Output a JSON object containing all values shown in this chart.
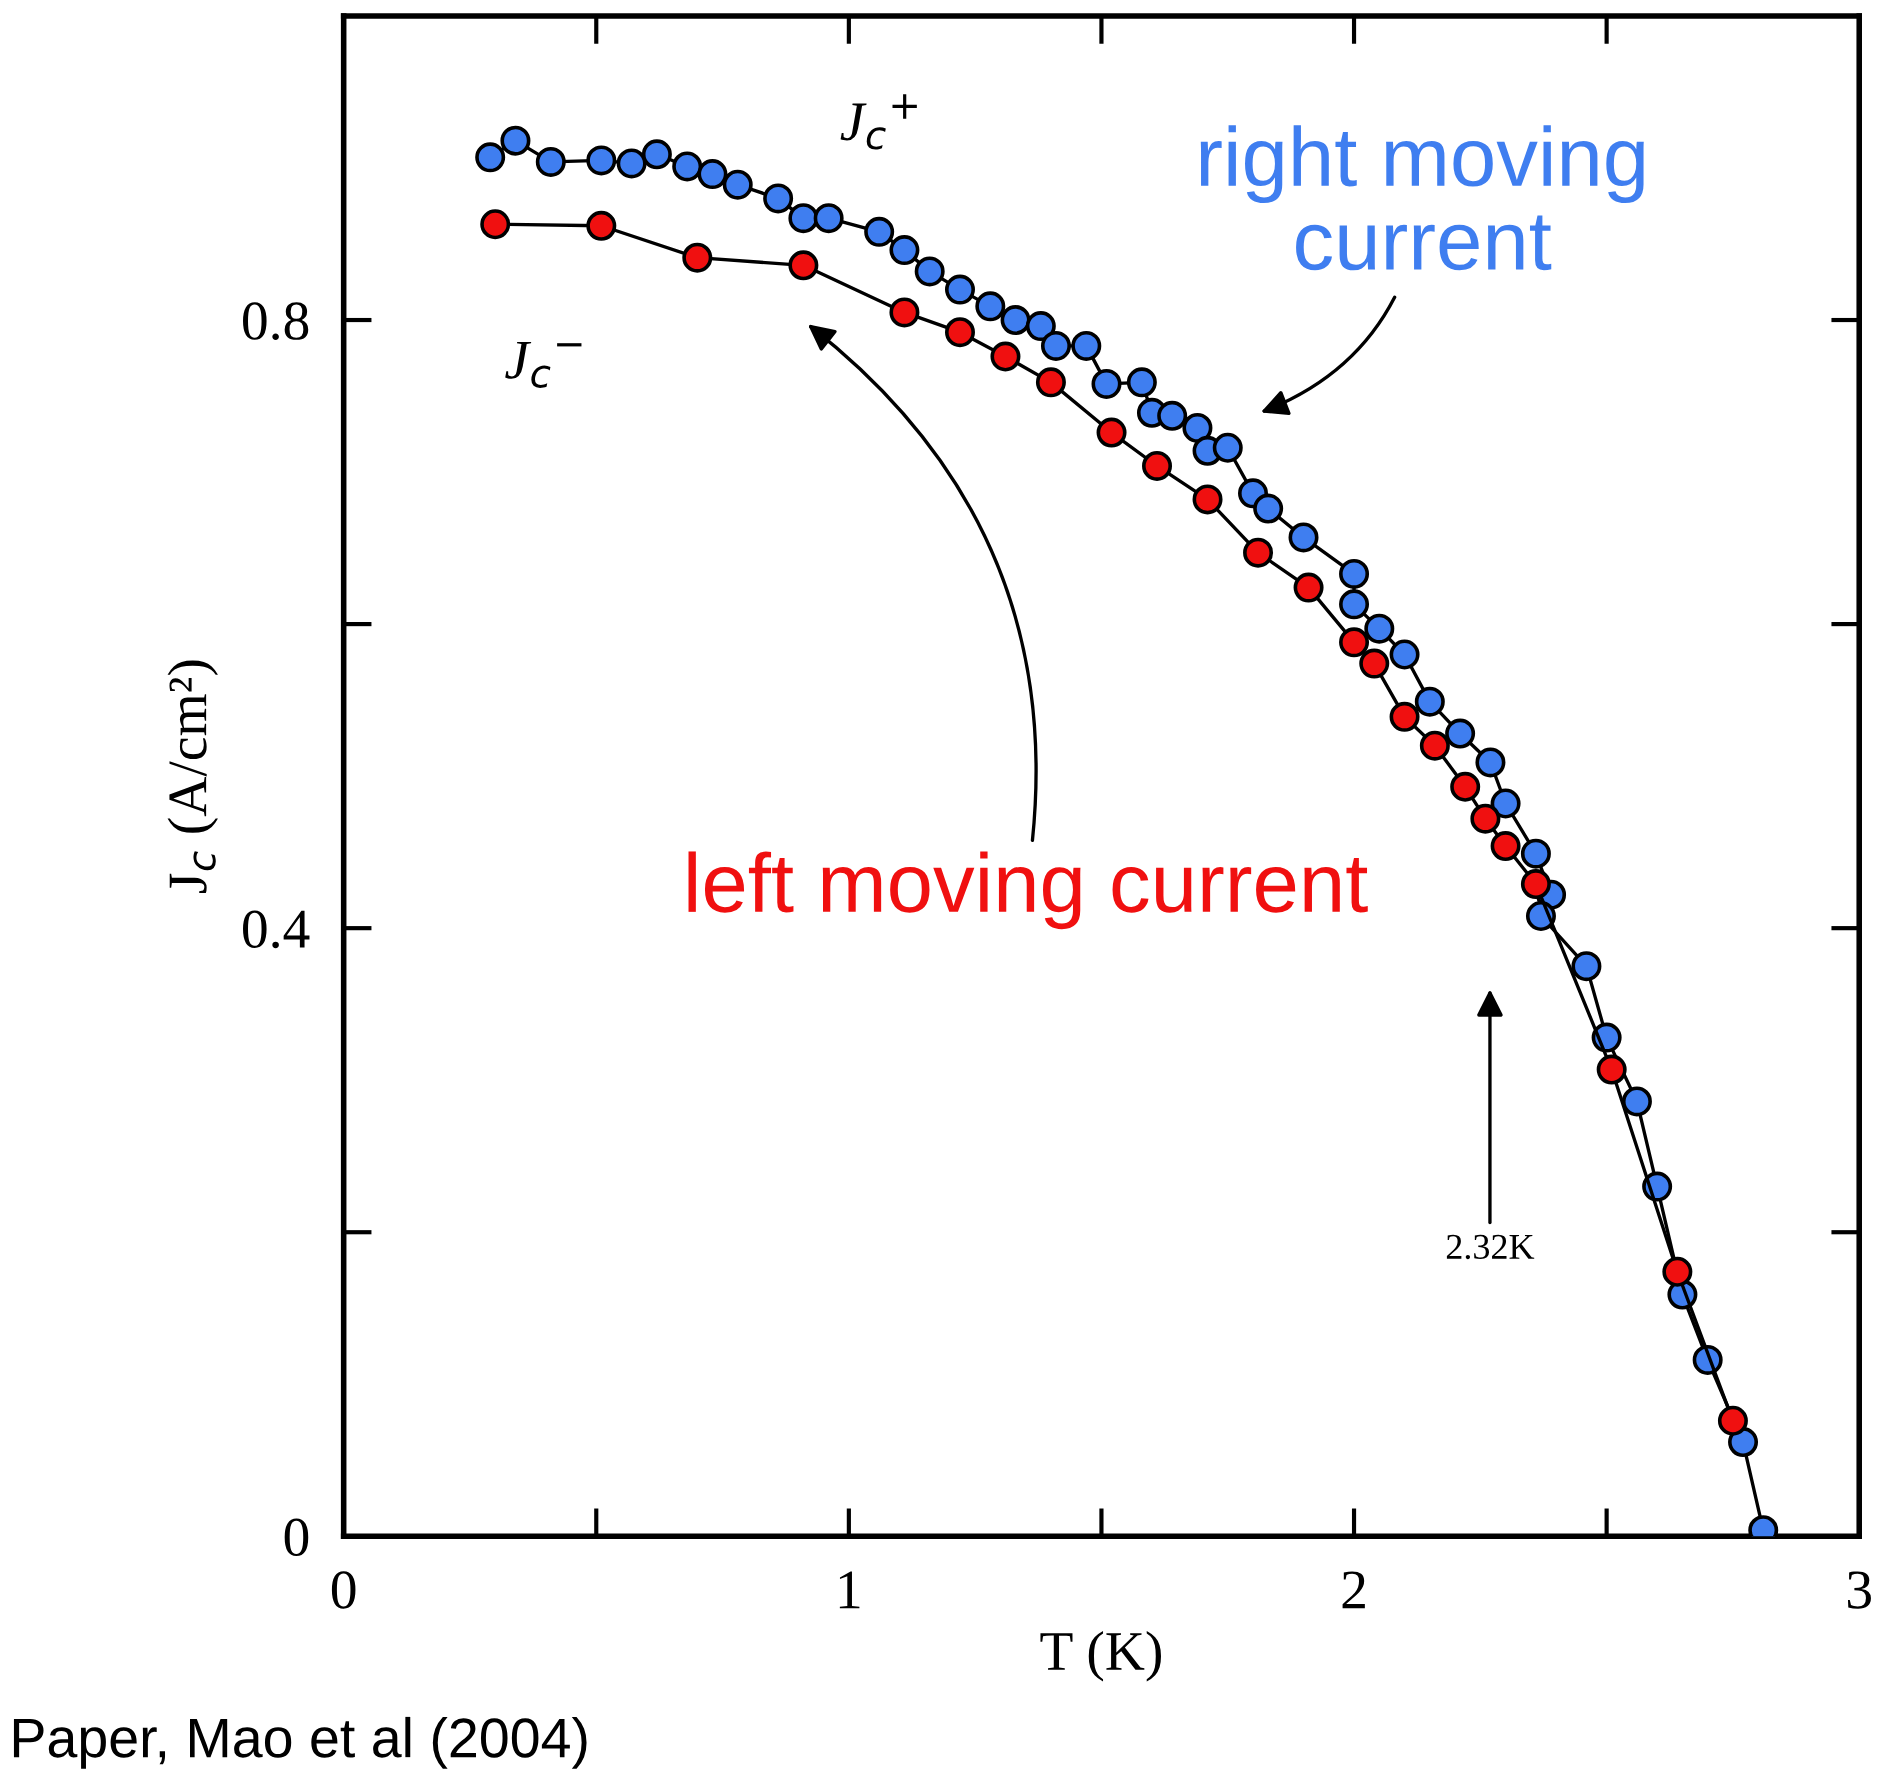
{
  "chart_data": {
    "type": "line",
    "xlabel": "T (K)",
    "ylabel": "J$_{c}$ (A/cm²)",
    "xlim": [
      0,
      3
    ],
    "ylim": [
      0,
      1.0
    ],
    "xticks": [
      0,
      {
        "value": 0.5,
        "label": null
      },
      1,
      {
        "value": 1.5,
        "label": null
      },
      2,
      {
        "value": 2.5,
        "label": null
      },
      3
    ],
    "yticks": [
      0,
      {
        "value": 0.2,
        "label": null
      },
      0.4,
      {
        "value": 0.6,
        "label": null
      },
      0.8
    ],
    "grid": false,
    "legend": "top left",
    "marker": "circle",
    "line_style": "solid",
    "series": [
      {
        "name": "J$_{c}$$^{+}$",
        "color": "#3f7ef0",
        "x": [
          0.29,
          0.34,
          0.41,
          0.51,
          0.57,
          0.62,
          0.68,
          0.73,
          0.78,
          0.86,
          0.91,
          0.96,
          1.06,
          1.11,
          1.16,
          1.22,
          1.28,
          1.33,
          1.38,
          1.41,
          1.47,
          1.51,
          1.58,
          1.6,
          1.64,
          1.69,
          1.71,
          1.75,
          1.8,
          1.83,
          1.9,
          2.0,
          2.0,
          2.05,
          2.1,
          2.15,
          2.21,
          2.27,
          2.3,
          2.36,
          2.39,
          2.37,
          2.46,
          2.5,
          2.56,
          2.6,
          2.65,
          2.7,
          2.77,
          2.81
        ],
        "values": [
          0.907,
          0.918,
          0.904,
          0.905,
          0.903,
          0.909,
          0.901,
          0.896,
          0.889,
          0.88,
          0.867,
          0.867,
          0.858,
          0.846,
          0.832,
          0.82,
          0.809,
          0.8,
          0.796,
          0.783,
          0.783,
          0.758,
          0.759,
          0.739,
          0.737,
          0.729,
          0.714,
          0.716,
          0.686,
          0.676,
          0.657,
          0.633,
          0.613,
          0.597,
          0.58,
          0.549,
          0.528,
          0.509,
          0.482,
          0.449,
          0.422,
          0.408,
          0.375,
          0.328,
          0.286,
          0.23,
          0.159,
          0.116,
          0.062,
          0.004
        ]
      },
      {
        "name": "J$_{c}$$^{−}$",
        "color": "#f01010",
        "x": [
          0.3,
          0.51,
          0.7,
          0.91,
          1.11,
          1.22,
          1.31,
          1.4,
          1.52,
          1.61,
          1.71,
          1.81,
          1.91,
          2.0,
          2.04,
          2.1,
          2.16,
          2.22,
          2.26,
          2.3,
          2.36,
          2.51,
          2.64,
          2.75
        ],
        "values": [
          0.863,
          0.862,
          0.841,
          0.836,
          0.805,
          0.792,
          0.776,
          0.759,
          0.726,
          0.704,
          0.682,
          0.647,
          0.624,
          0.588,
          0.574,
          0.539,
          0.52,
          0.493,
          0.472,
          0.454,
          0.429,
          0.307,
          0.174,
          0.076
        ]
      }
    ],
    "annotations": [
      "right moving\ncurrent",
      "left moving current",
      "2.32K",
      "Paper, Mao et al (2004)"
    ]
  }
}
